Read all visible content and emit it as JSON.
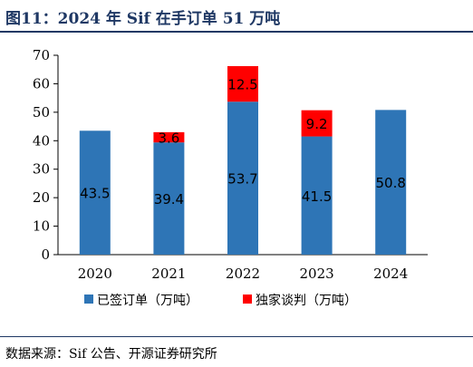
{
  "header": {
    "title": "图11：2024 年 Sif 在手订单 51 万吨"
  },
  "footer": {
    "source": "数据来源：Sif 公告、开源证券研究所"
  },
  "chart_data": {
    "type": "bar",
    "stacked": true,
    "categories": [
      "2020",
      "2021",
      "2022",
      "2023",
      "2024"
    ],
    "series": [
      {
        "name": "已签订单（万吨）",
        "color": "#2e75b6",
        "values": [
          43.5,
          39.4,
          53.7,
          41.5,
          50.8
        ]
      },
      {
        "name": "独家谈判（万吨）",
        "color": "#ff0000",
        "values": [
          null,
          3.6,
          12.5,
          9.2,
          null
        ]
      }
    ],
    "ylim": [
      0,
      70
    ],
    "yticks": [
      0,
      10,
      20,
      30,
      40,
      50,
      60,
      70
    ],
    "grid": false,
    "legend": "bottom"
  }
}
